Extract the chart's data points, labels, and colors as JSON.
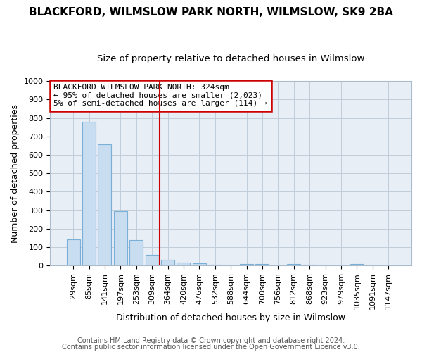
{
  "title1": "BLACKFORD, WILMSLOW PARK NORTH, WILMSLOW, SK9 2BA",
  "title2": "Size of property relative to detached houses in Wilmslow",
  "xlabel": "Distribution of detached houses by size in Wilmslow",
  "ylabel": "Number of detached properties",
  "bar_labels": [
    "29sqm",
    "85sqm",
    "141sqm",
    "197sqm",
    "253sqm",
    "309sqm",
    "364sqm",
    "420sqm",
    "476sqm",
    "532sqm",
    "588sqm",
    "644sqm",
    "700sqm",
    "756sqm",
    "812sqm",
    "868sqm",
    "923sqm",
    "979sqm",
    "1035sqm",
    "1091sqm",
    "1147sqm"
  ],
  "bar_values": [
    143,
    779,
    656,
    296,
    137,
    58,
    30,
    18,
    13,
    6,
    0,
    10,
    9,
    0,
    8,
    5,
    0,
    0,
    8,
    0,
    0
  ],
  "bar_color": "#c8ddf0",
  "bar_edge_color": "#7ab0d8",
  "annotation_text": "BLACKFORD WILMSLOW PARK NORTH: 324sqm\n← 95% of detached houses are smaller (2,023)\n5% of semi-detached houses are larger (114) →",
  "annotation_box_color": "#ffffff",
  "annotation_box_edge": "#cc0000",
  "vline_color": "#cc0000",
  "vline_x": 5.5,
  "ylim": [
    0,
    1000
  ],
  "yticks": [
    0,
    100,
    200,
    300,
    400,
    500,
    600,
    700,
    800,
    900,
    1000
  ],
  "footer1": "Contains HM Land Registry data © Crown copyright and database right 2024.",
  "footer2": "Contains public sector information licensed under the Open Government Licence v3.0.",
  "fig_bg_color": "#ffffff",
  "plot_bg_color": "#e8eef6",
  "grid_color": "#c0ccd8",
  "title1_fontsize": 11,
  "title2_fontsize": 9.5,
  "axis_label_fontsize": 9,
  "tick_fontsize": 8,
  "annotation_fontsize": 8,
  "footer_fontsize": 7
}
